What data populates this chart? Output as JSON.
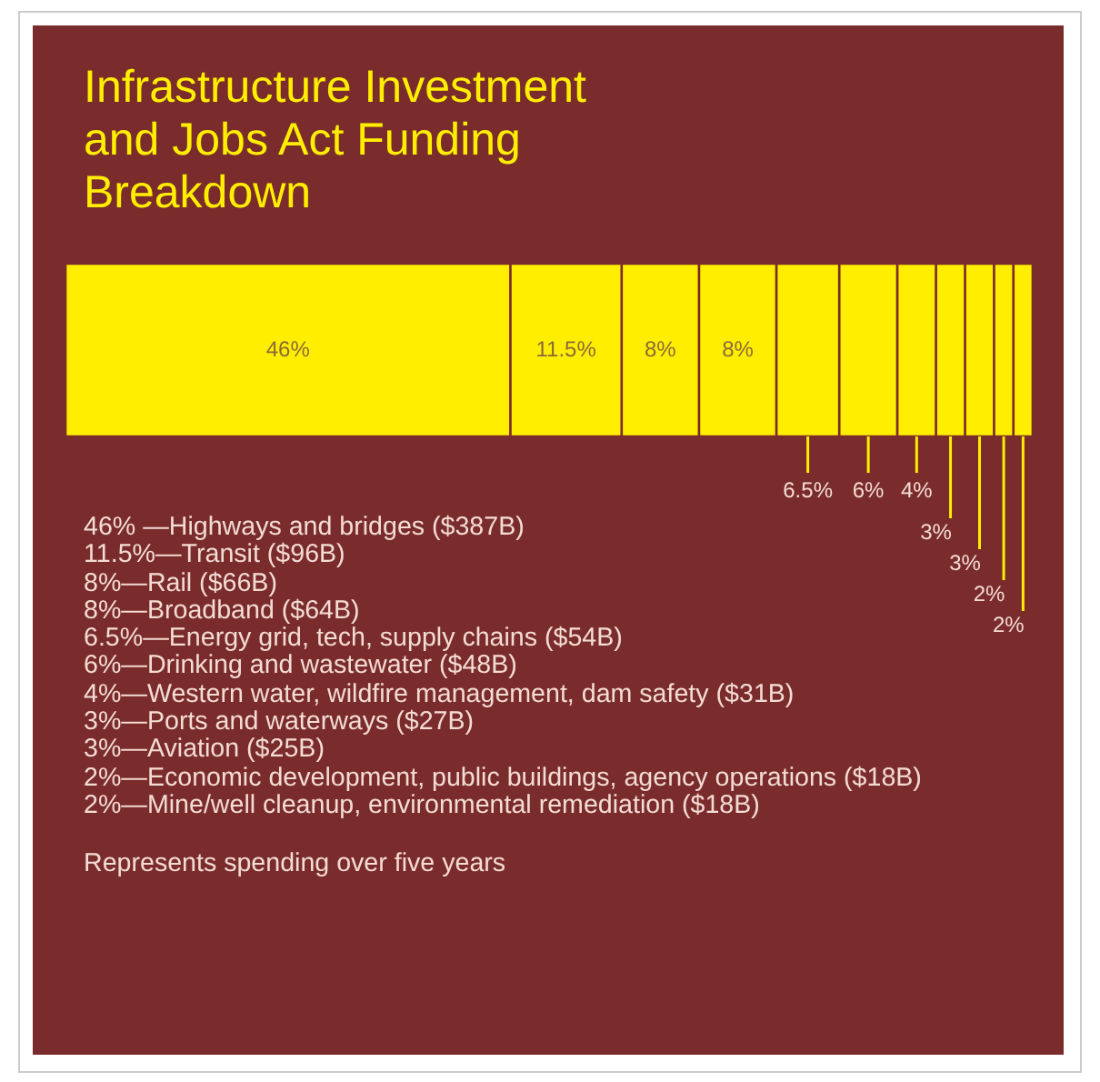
{
  "chart_data": {
    "type": "bar",
    "title": "Infrastructure Investment and Jobs Act Funding Breakdown",
    "orientation": "horizontal",
    "stacked": true,
    "categories": [
      null
    ],
    "tick_labels": false,
    "legend": false,
    "series": [
      {
        "color": "#ffee00",
        "values": [
          46
        ],
        "value_labels": [
          "46%"
        ]
      },
      {
        "color": "#ffee00",
        "values": [
          11.5
        ],
        "value_labels": [
          "11.5%"
        ]
      },
      {
        "color": "#ffee00",
        "values": [
          8
        ],
        "value_labels": [
          "8%"
        ]
      },
      {
        "color": "#ffee00",
        "values": [
          8
        ],
        "value_labels": [
          "8%"
        ]
      },
      {
        "color": "#ffee00",
        "values": [
          6.5
        ],
        "value_labels": [
          "6.5%"
        ]
      },
      {
        "color": "#ffee00",
        "values": [
          6
        ],
        "value_labels": [
          "6%"
        ]
      },
      {
        "color": "#ffee00",
        "values": [
          4
        ],
        "value_labels": [
          "4%"
        ]
      },
      {
        "color": "#ffee00",
        "values": [
          3
        ],
        "value_labels": [
          "3%"
        ]
      },
      {
        "color": "#ffee00",
        "values": [
          3
        ],
        "value_labels": [
          "3%"
        ]
      },
      {
        "color": "#ffee00",
        "values": [
          2
        ],
        "value_labels": [
          "2%"
        ]
      },
      {
        "color": "#ffee00",
        "values": [
          2
        ],
        "value_labels": [
          "2%"
        ]
      }
    ],
    "annotations": [
      "46% —Highways and bridges ($387B)",
      "11.5%—Transit ($96B)",
      "8%—Rail ($66B)",
      "8%—Broadband ($64B)",
      "6.5%—Energy grid, tech, supply chains ($54B)",
      "6%—Drinking and wastewater ($48B)",
      "4%—Western water, wildfire management, dam safety ($31B)",
      "3%—Ports and waterways ($27B)",
      "3%—Aviation ($25B)",
      "2%—Economic development, public buildings, agency operations ($18B)",
      "2%—Mine/well cleanup, environmental remediation ($18B)",
      "Represents spending over five years"
    ]
  }
}
